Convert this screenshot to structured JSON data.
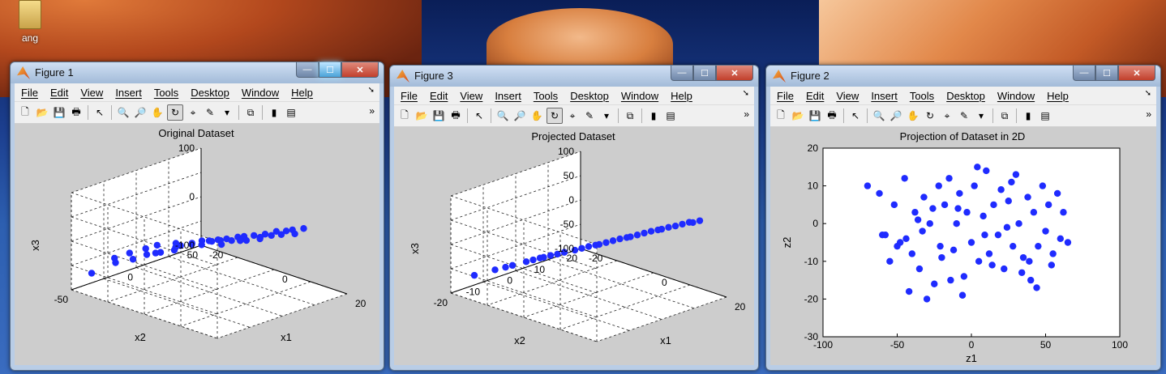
{
  "desktop": {
    "icon_label": "ang"
  },
  "menus": [
    "File",
    "Edit",
    "View",
    "Insert",
    "Tools",
    "Desktop",
    "Window",
    "Help"
  ],
  "windows": {
    "fig1": {
      "title": "Figure 1",
      "plot_title": "Original Dataset",
      "zlabel": "x3",
      "ylabel": "x2",
      "xlabel": "x1",
      "zticks": [
        "100",
        "0",
        "-100"
      ],
      "yticks": [
        "50",
        "0",
        "-50"
      ],
      "xticks": [
        "-20",
        "0",
        "20"
      ]
    },
    "fig3": {
      "title": "Figure 3",
      "plot_title": "Projected Dataset",
      "zlabel": "x3",
      "ylabel": "x2",
      "xlabel": "x1",
      "zticks": [
        "100",
        "50",
        "0",
        "-50",
        "-100"
      ],
      "yticks": [
        "20",
        "10",
        "0",
        "-10",
        "-20"
      ],
      "xticks": [
        "-20",
        "0",
        "20"
      ]
    },
    "fig2": {
      "title": "Figure 2",
      "plot_title": "Projection of Dataset in 2D",
      "xlabel": "z1",
      "ylabel": "z2",
      "xticks": [
        "-100",
        "-50",
        "0",
        "50",
        "100"
      ],
      "yticks": [
        "20",
        "10",
        "0",
        "-10",
        "-20",
        "-30"
      ]
    }
  },
  "colors": {
    "point": "#1f2bff",
    "axes_bg": "#ffffff",
    "figure_bg": "#cdcdcd"
  },
  "chart_data": [
    {
      "type": "scatter",
      "title": "Original Dataset",
      "dims": 3,
      "xlabel": "x1",
      "ylabel": "x2",
      "zlabel": "x3",
      "xlim": [
        -20,
        20
      ],
      "ylim": [
        -50,
        50
      ],
      "zlim": [
        -100,
        100
      ],
      "points": [
        [
          -18,
          -40,
          -70
        ],
        [
          -15,
          -30,
          -50
        ],
        [
          -12,
          -25,
          -40
        ],
        [
          -10,
          -20,
          -30
        ],
        [
          -8,
          -15,
          -25
        ],
        [
          -6,
          -10,
          -20
        ],
        [
          -5,
          -8,
          -10
        ],
        [
          -3,
          -5,
          -5
        ],
        [
          -2,
          0,
          0
        ],
        [
          0,
          0,
          5
        ],
        [
          2,
          3,
          8
        ],
        [
          3,
          5,
          12
        ],
        [
          5,
          8,
          18
        ],
        [
          6,
          10,
          20
        ],
        [
          8,
          12,
          25
        ],
        [
          10,
          15,
          30
        ],
        [
          12,
          18,
          38
        ],
        [
          14,
          20,
          42
        ],
        [
          15,
          22,
          45
        ],
        [
          17,
          25,
          50
        ],
        [
          -10,
          -12,
          -18
        ],
        [
          -7,
          -6,
          -12
        ],
        [
          -4,
          -2,
          -8
        ],
        [
          0,
          2,
          2
        ],
        [
          4,
          6,
          10
        ],
        [
          7,
          9,
          15
        ],
        [
          9,
          14,
          22
        ],
        [
          11,
          17,
          28
        ],
        [
          13,
          19,
          33
        ],
        [
          -14,
          -22,
          -35
        ],
        [
          -9,
          -16,
          -28
        ],
        [
          -1,
          -3,
          -3
        ],
        [
          1,
          4,
          6
        ],
        [
          6,
          7,
          14
        ],
        [
          10,
          11,
          24
        ],
        [
          16,
          21,
          40
        ],
        [
          -16,
          -28,
          -45
        ],
        [
          -11,
          -18,
          -22
        ],
        [
          -6,
          -9,
          -15
        ],
        [
          3,
          1,
          4
        ]
      ]
    },
    {
      "type": "scatter",
      "title": "Projected Dataset",
      "dims": 3,
      "xlabel": "x1",
      "ylabel": "x2",
      "zlabel": "x3",
      "xlim": [
        -20,
        20
      ],
      "ylim": [
        -20,
        20
      ],
      "zlim": [
        -100,
        100
      ],
      "points": [
        [
          -18,
          -15,
          -70
        ],
        [
          -15,
          -12,
          -58
        ],
        [
          -12,
          -10,
          -46
        ],
        [
          -10,
          -8,
          -38
        ],
        [
          -8,
          -6,
          -30
        ],
        [
          -6,
          -5,
          -22
        ],
        [
          -4,
          -3,
          -15
        ],
        [
          -2,
          -2,
          -8
        ],
        [
          0,
          0,
          0
        ],
        [
          2,
          1,
          7
        ],
        [
          4,
          3,
          15
        ],
        [
          6,
          5,
          22
        ],
        [
          8,
          6,
          30
        ],
        [
          10,
          8,
          38
        ],
        [
          12,
          9,
          45
        ],
        [
          14,
          11,
          52
        ],
        [
          16,
          13,
          60
        ],
        [
          18,
          14,
          66
        ],
        [
          -9,
          -7,
          -34
        ],
        [
          -5,
          -4,
          -19
        ],
        [
          -1,
          -1,
          -4
        ],
        [
          3,
          2,
          11
        ],
        [
          7,
          5,
          26
        ],
        [
          11,
          9,
          41
        ],
        [
          15,
          12,
          56
        ],
        [
          -13,
          -11,
          -50
        ],
        [
          -7,
          -6,
          -26
        ],
        [
          1,
          1,
          3
        ],
        [
          5,
          4,
          19
        ],
        [
          9,
          7,
          34
        ],
        [
          13,
          10,
          49
        ],
        [
          17,
          13,
          62
        ]
      ]
    },
    {
      "type": "scatter",
      "title": "Projection of Dataset in 2D",
      "xlabel": "z1",
      "ylabel": "z2",
      "xlim": [
        -100,
        100
      ],
      "ylim": [
        -30,
        20
      ],
      "x": [
        -70,
        -62,
        -58,
        -52,
        -48,
        -45,
        -40,
        -38,
        -35,
        -32,
        -30,
        -28,
        -25,
        -22,
        -20,
        -18,
        -15,
        -12,
        -10,
        -8,
        -5,
        -3,
        0,
        2,
        5,
        8,
        10,
        12,
        15,
        18,
        20,
        22,
        25,
        28,
        30,
        32,
        35,
        38,
        40,
        42,
        45,
        48,
        50,
        52,
        55,
        58,
        60,
        62,
        65,
        -55,
        -42,
        -33,
        -26,
        -14,
        -6,
        4,
        14,
        24,
        34,
        44,
        54,
        -36,
        -21,
        -9,
        9,
        27,
        39,
        -60,
        -50,
        -44
      ],
      "y": [
        10,
        8,
        -3,
        5,
        -5,
        12,
        -8,
        3,
        -12,
        7,
        -20,
        0,
        -16,
        10,
        -9,
        5,
        12,
        -7,
        0,
        8,
        -14,
        3,
        -5,
        10,
        -10,
        2,
        14,
        -8,
        5,
        -3,
        9,
        -12,
        6,
        -6,
        13,
        0,
        -9,
        7,
        -15,
        3,
        -6,
        10,
        -2,
        5,
        -8,
        8,
        -4,
        3,
        -5,
        -10,
        -18,
        -2,
        4,
        -15,
        -19,
        15,
        -11,
        -1,
        -13,
        -17,
        -11,
        1,
        -6,
        4,
        -3,
        11,
        -10,
        -3,
        -6,
        -4
      ]
    }
  ]
}
